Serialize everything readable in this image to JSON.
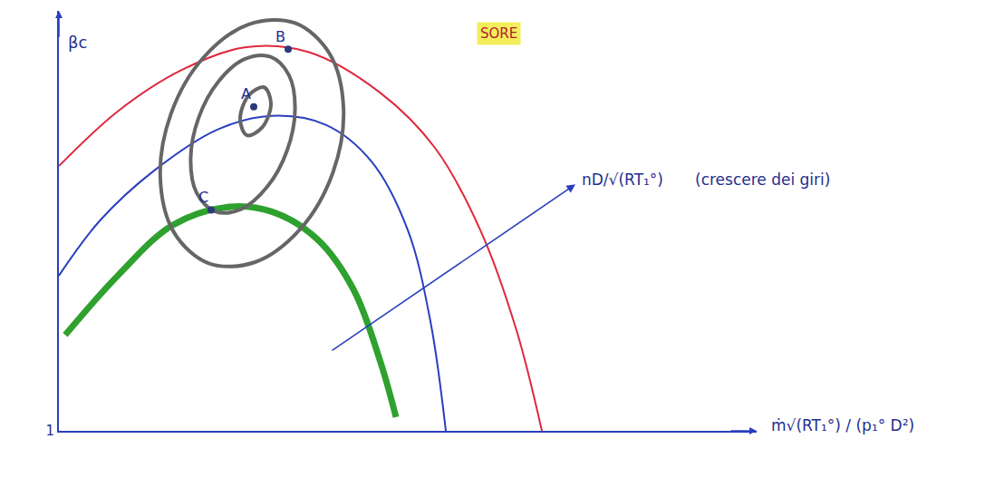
{
  "chart_data": {
    "type": "line",
    "title": "SORE",
    "x_label": "ṁ√(RT₁°) / (p₁° D²)",
    "y_label": "βc",
    "xlim": [
      0,
      7.7
    ],
    "ylim": [
      1,
      5.6
    ],
    "xticks": [],
    "yticks": [
      1
    ],
    "tick_labels": "y",
    "grid": false,
    "series": [
      {
        "color": "#e0283c",
        "x": [
          0,
          0.65,
          1.35,
          2.05,
          2.75,
          3.55,
          4.15,
          4.65,
          5.05,
          5.33
        ],
        "y": [
          3.9,
          4.5,
          4.95,
          5.2,
          5.15,
          4.7,
          4.1,
          3.2,
          2.1,
          1.0
        ]
      },
      {
        "color": "#2a3fbf",
        "x": [
          0,
          0.45,
          1.05,
          1.75,
          2.35,
          2.95,
          3.45,
          3.85,
          4.1,
          4.27
        ],
        "y": [
          2.7,
          3.3,
          3.85,
          4.3,
          4.45,
          4.35,
          3.95,
          3.2,
          2.2,
          1.0
        ]
      },
      {
        "color": "#2ea12e",
        "line_style": "thick",
        "x": [
          0.07,
          0.65,
          1.25,
          1.85,
          2.35,
          2.85,
          3.25,
          3.55,
          3.72
        ],
        "y": [
          2.05,
          2.7,
          3.25,
          3.45,
          3.4,
          3.1,
          2.55,
          1.75,
          1.15
        ]
      },
      {
        "color": "#666666",
        "line_style": "closed",
        "x": [
          2.606,
          2.989,
          3.141,
          3.023,
          2.665,
          2.165,
          1.654,
          1.271,
          1.119,
          1.237,
          1.595,
          2.095
        ],
        "y": [
          5.466,
          5.128,
          4.528,
          3.827,
          3.212,
          2.848,
          2.834,
          3.172,
          3.772,
          4.473,
          5.088,
          5.452
        ]
      },
      {
        "color": "#666666",
        "line_style": "closed",
        "x": [
          2.336,
          2.54,
          2.606,
          2.519,
          2.3,
          2.01,
          1.724,
          1.52,
          1.454,
          1.541,
          1.76,
          2.05
        ],
        "y": [
          5.096,
          4.894,
          4.52,
          4.073,
          3.674,
          3.428,
          3.404,
          3.606,
          3.98,
          4.427,
          4.826,
          5.072
        ]
      },
      {
        "color": "#666666",
        "line_style": "closed",
        "x": [
          2.265,
          2.34,
          2.244,
          2.075,
          2.0,
          2.096
        ],
        "y": [
          4.763,
          4.588,
          4.324,
          4.237,
          4.412,
          4.676
        ]
      }
    ],
    "points": [
      {
        "label": "A",
        "x": 2.15,
        "y": 4.55
      },
      {
        "label": "B",
        "x": 2.53,
        "y": 5.18
      },
      {
        "label": "C",
        "x": 1.68,
        "y": 3.42
      }
    ],
    "annotations": [
      {
        "text": "nD/√(RT₁°)",
        "x": 5.75,
        "y": 3.75
      },
      {
        "text": "(crescere dei giri)",
        "x": 7.0,
        "y": 3.75
      }
    ],
    "arrow": {
      "from": [
        3.0,
        1.87
      ],
      "to": [
        5.7,
        3.7
      ]
    }
  }
}
